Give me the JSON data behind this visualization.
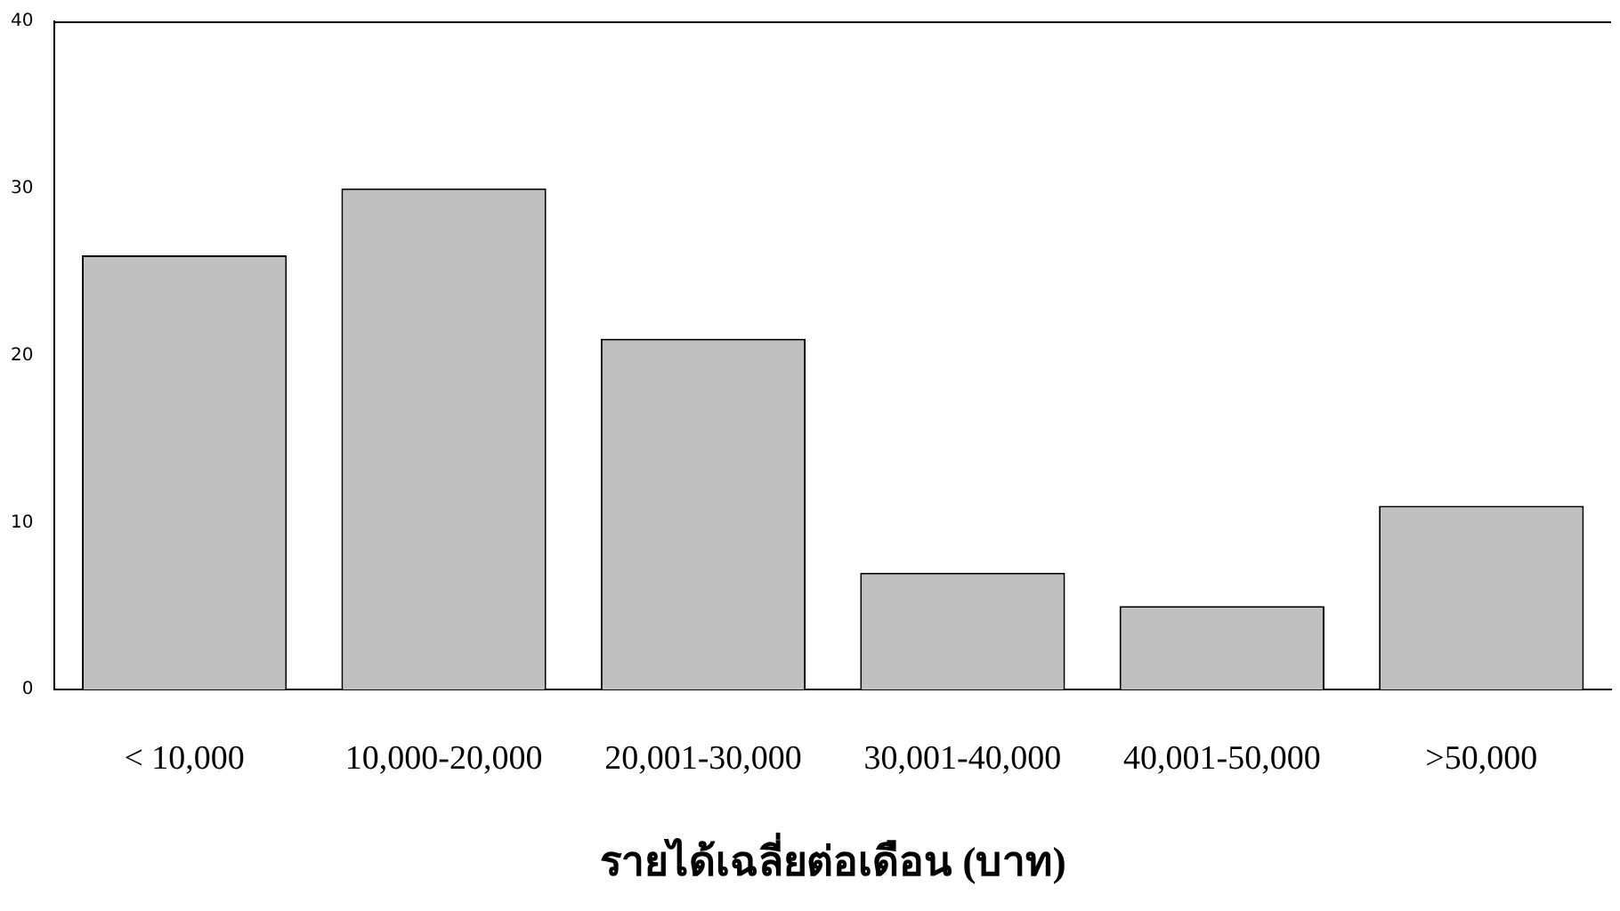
{
  "chart_data": {
    "type": "bar",
    "xlabel": "รายได้เฉลี่ยต่อเดือน (บาท)",
    "categories": [
      "< 10,000",
      "10,000-20,000",
      "20,001-30,000",
      "30,001-40,000",
      "40,001-50,000",
      ">50,000"
    ],
    "values": [
      26,
      30,
      21,
      7,
      5,
      11
    ],
    "color": "#c0c0c0",
    "ylim": [
      0,
      40
    ],
    "yticks": [
      0,
      10,
      20,
      30,
      40
    ],
    "grid": false,
    "legend": false
  }
}
